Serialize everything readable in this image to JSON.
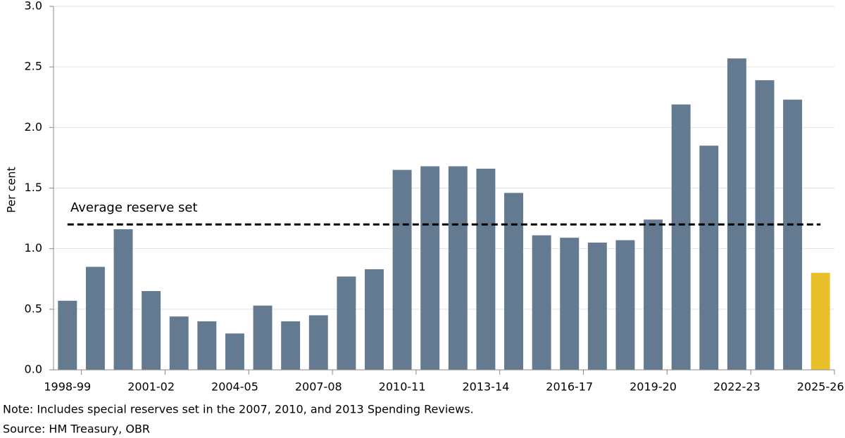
{
  "chart_data": {
    "type": "bar",
    "y_label": "Per cent",
    "categories": [
      "1998-99",
      null,
      null,
      "2001-02",
      null,
      null,
      "2004-05",
      null,
      null,
      "2007-08",
      null,
      null,
      "2010-11",
      null,
      null,
      "2013-14",
      null,
      null,
      "2016-17",
      null,
      null,
      "2019-20",
      null,
      null,
      "2022-23",
      null,
      null,
      "2025-26"
    ],
    "values": [
      0.57,
      0.85,
      1.16,
      0.65,
      0.44,
      0.4,
      0.3,
      0.53,
      0.4,
      0.45,
      0.77,
      0.83,
      1.65,
      1.68,
      1.68,
      1.66,
      1.46,
      1.11,
      1.09,
      1.05,
      1.07,
      1.24,
      2.19,
      1.85,
      2.57,
      2.39,
      2.23,
      0.8
    ],
    "colors": [
      "#647a91",
      "#647a91",
      "#647a91",
      "#647a91",
      "#647a91",
      "#647a91",
      "#647a91",
      "#647a91",
      "#647a91",
      "#647a91",
      "#647a91",
      "#647a91",
      "#647a91",
      "#647a91",
      "#647a91",
      "#647a91",
      "#647a91",
      "#647a91",
      "#647a91",
      "#647a91",
      "#647a91",
      "#647a91",
      "#647a91",
      "#647a91",
      "#647a91",
      "#647a91",
      "#647a91",
      "#e8c12a"
    ],
    "reference_line": {
      "label": "Average reserve set",
      "value": 1.2
    },
    "ylim": [
      0,
      3
    ],
    "yticks": [
      {
        "value": 0,
        "label": "0.0"
      },
      {
        "value": 0.5,
        "label": "0.5"
      },
      {
        "value": 1,
        "label": "1.0"
      },
      {
        "value": 1.5,
        "label": "1.5"
      },
      {
        "value": 2,
        "label": "2.0"
      },
      {
        "value": 2.5,
        "label": "2.5"
      },
      {
        "value": 3,
        "label": "3.0"
      }
    ],
    "grid": true,
    "note": "Note: Includes special reserves set in the 2007, 2010, and 2013 Spending Reviews.",
    "source": "Source: HM Treasury, OBR"
  }
}
